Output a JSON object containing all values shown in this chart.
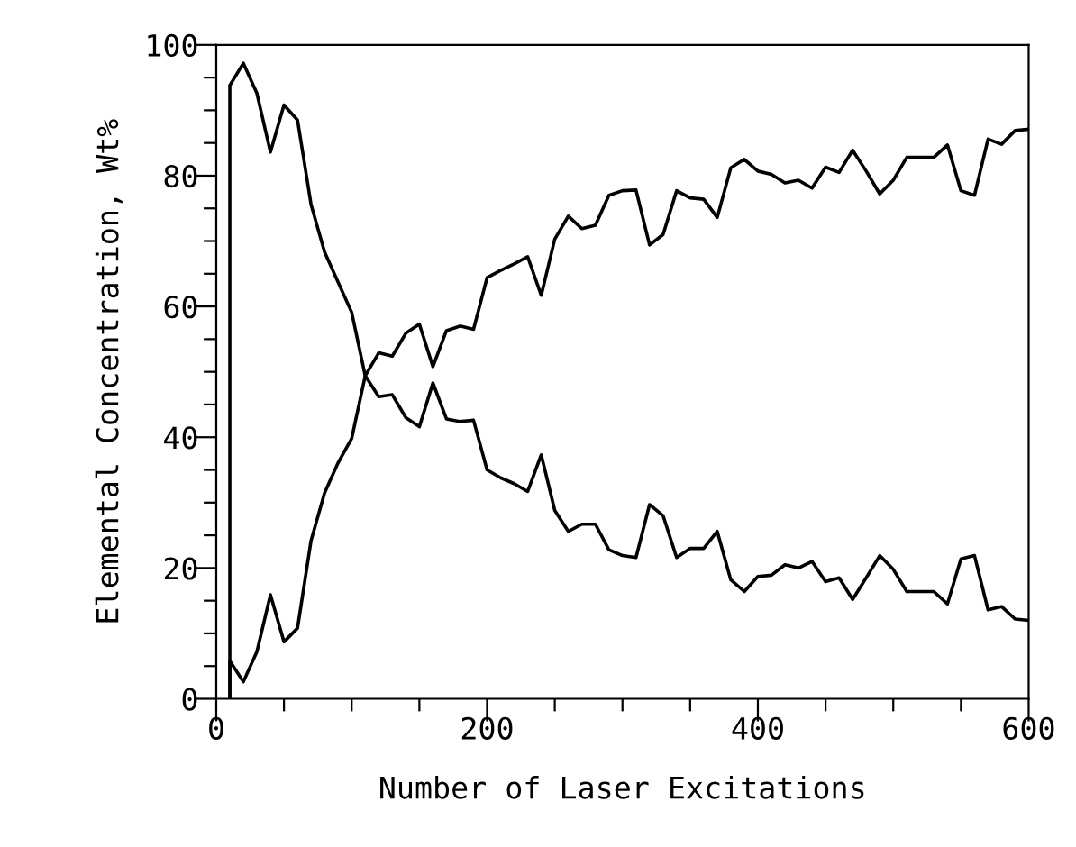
{
  "chart_data": {
    "type": "line",
    "xlabel": "Number of Laser Excitations",
    "ylabel": "Elemental Concentration, Wt%",
    "xlim": [
      0,
      600
    ],
    "ylim": [
      0,
      100
    ],
    "xticks": [
      0,
      {
        "value": 50,
        "label": null
      },
      {
        "value": 100,
        "label": null
      },
      {
        "value": 150,
        "label": null
      },
      200,
      {
        "value": 250,
        "label": null
      },
      {
        "value": 300,
        "label": null
      },
      {
        "value": 350,
        "label": null
      },
      400,
      {
        "value": 450,
        "label": null
      },
      {
        "value": 500,
        "label": null
      },
      {
        "value": 550,
        "label": null
      },
      600
    ],
    "yticks": [
      0,
      {
        "value": 5,
        "label": null
      },
      {
        "value": 10,
        "label": null
      },
      {
        "value": 15,
        "label": null
      },
      20,
      {
        "value": 25,
        "label": null
      },
      {
        "value": 30,
        "label": null
      },
      {
        "value": 35,
        "label": null
      },
      40,
      {
        "value": 45,
        "label": null
      },
      {
        "value": 50,
        "label": null
      },
      {
        "value": 55,
        "label": null
      },
      60,
      {
        "value": 65,
        "label": null
      },
      {
        "value": 70,
        "label": null
      },
      {
        "value": 75,
        "label": null
      },
      80,
      {
        "value": 85,
        "label": null
      },
      {
        "value": 90,
        "label": null
      },
      {
        "value": 95,
        "label": null
      },
      100
    ],
    "grid": false,
    "legend": false,
    "marker": "none",
    "line_style": "solid",
    "series": [
      {
        "color": "#000000",
        "x": [
          10,
          10,
          20,
          30,
          40,
          50,
          60,
          70,
          80,
          90,
          100,
          110,
          120,
          130,
          140,
          150,
          160,
          170,
          180,
          190,
          200,
          210,
          220,
          230,
          240,
          250,
          260,
          270,
          280,
          290,
          300,
          310,
          320,
          330,
          340,
          350,
          360,
          370,
          380,
          390,
          400,
          410,
          420,
          430,
          440,
          450,
          460,
          470,
          480,
          490,
          500,
          510,
          520,
          530,
          540,
          550,
          560,
          570,
          580,
          590,
          600
        ],
        "values": [
          0,
          93.8,
          97.2,
          92.6,
          83.6,
          90.8,
          88.5,
          75.6,
          68.3,
          63.7,
          59.1,
          49.4,
          46.2,
          46.5,
          43.0,
          41.6,
          48.3,
          42.8,
          42.4,
          42.6,
          35.0,
          33.8,
          32.9,
          31.7,
          37.3,
          28.8,
          25.6,
          26.7,
          26.7,
          22.8,
          21.9,
          21.6,
          29.7,
          28.0,
          21.6,
          23.0,
          23.0,
          25.6,
          18.2,
          16.4,
          18.7,
          18.9,
          20.5,
          20.0,
          21.0,
          17.9,
          18.5,
          15.2,
          18.5,
          21.9,
          19.8,
          16.4,
          16.4,
          16.4,
          14.5,
          21.4,
          21.9,
          13.6,
          14.1,
          12.2,
          12.0
        ]
      },
      {
        "color": "#000000",
        "x": [
          10,
          10,
          20,
          30,
          40,
          50,
          60,
          70,
          80,
          90,
          100,
          110,
          120,
          130,
          140,
          150,
          160,
          170,
          180,
          190,
          200,
          210,
          220,
          230,
          240,
          250,
          260,
          270,
          280,
          290,
          300,
          310,
          320,
          330,
          340,
          350,
          360,
          370,
          380,
          390,
          400,
          410,
          420,
          430,
          440,
          450,
          460,
          470,
          480,
          490,
          500,
          510,
          520,
          530,
          540,
          550,
          560,
          570,
          580,
          590,
          600
        ],
        "values": [
          0,
          5.8,
          2.6,
          7.2,
          15.9,
          8.7,
          10.8,
          24.2,
          31.5,
          36.1,
          39.8,
          49.4,
          52.9,
          52.4,
          55.9,
          57.3,
          50.8,
          56.3,
          57.0,
          56.5,
          64.4,
          65.5,
          66.5,
          67.6,
          61.7,
          70.3,
          73.8,
          71.9,
          72.4,
          77.0,
          77.7,
          77.8,
          69.4,
          71.0,
          77.7,
          76.6,
          76.4,
          73.6,
          81.2,
          82.5,
          80.7,
          80.2,
          78.9,
          79.3,
          78.1,
          81.3,
          80.5,
          83.9,
          80.7,
          77.2,
          79.3,
          82.8,
          82.8,
          82.8,
          84.7,
          77.7,
          77.0,
          85.6,
          84.8,
          86.9,
          87.1
        ]
      }
    ]
  }
}
